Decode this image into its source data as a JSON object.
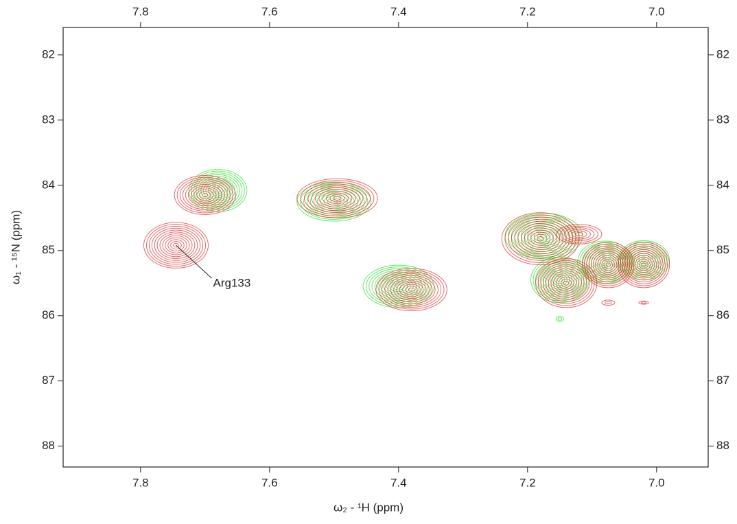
{
  "chart_data": {
    "type": "contour",
    "xlabel": "ω₂ - ¹H (ppm)",
    "ylabel": "ω₁ - ¹⁵N (ppm)",
    "xlim": [
      7.92,
      6.92
    ],
    "ylim": [
      88.32,
      81.58
    ],
    "xticks": [
      7.8,
      7.6,
      7.4,
      7.2,
      {
        "value": 7,
        "label": "7.0"
      }
    ],
    "yticks": [
      82,
      83,
      84,
      85,
      86,
      87,
      88
    ],
    "series": [
      {
        "name": "green",
        "color": "#22dd22",
        "x": [
          7.68,
          7.5,
          7.4,
          7.175,
          7.15,
          7.08,
          7.02,
          7.15
        ],
        "values": [
          84.08,
          84.25,
          85.55,
          84.78,
          85.45,
          85.18,
          85.15,
          86.05
        ],
        "x_widths": [
          0.09,
          0.115,
          0.11,
          0.12,
          0.09,
          0.085,
          0.08,
          0.012
        ],
        "y_widths": [
          0.65,
          0.6,
          0.65,
          0.7,
          0.7,
          0.65,
          0.6,
          0.08
        ]
      },
      {
        "name": "red",
        "color": "#dd2222",
        "x": [
          7.7,
          7.745,
          7.495,
          7.38,
          7.18,
          7.12,
          7.14,
          7.075,
          7.02,
          7.075,
          7.02
        ],
        "values": [
          84.15,
          84.92,
          84.2,
          85.6,
          84.82,
          84.75,
          85.5,
          85.22,
          85.22,
          85.8,
          85.8
        ],
        "x_widths": [
          0.095,
          0.1,
          0.125,
          0.11,
          0.12,
          0.07,
          0.095,
          0.08,
          0.08,
          0.02,
          0.015
        ],
        "y_widths": [
          0.6,
          0.7,
          0.6,
          0.65,
          0.8,
          0.3,
          0.75,
          0.7,
          0.7,
          0.08,
          0.05
        ]
      }
    ],
    "annotations": [
      {
        "text": "Arg133",
        "x": 7.745,
        "y": 84.92
      }
    ]
  }
}
